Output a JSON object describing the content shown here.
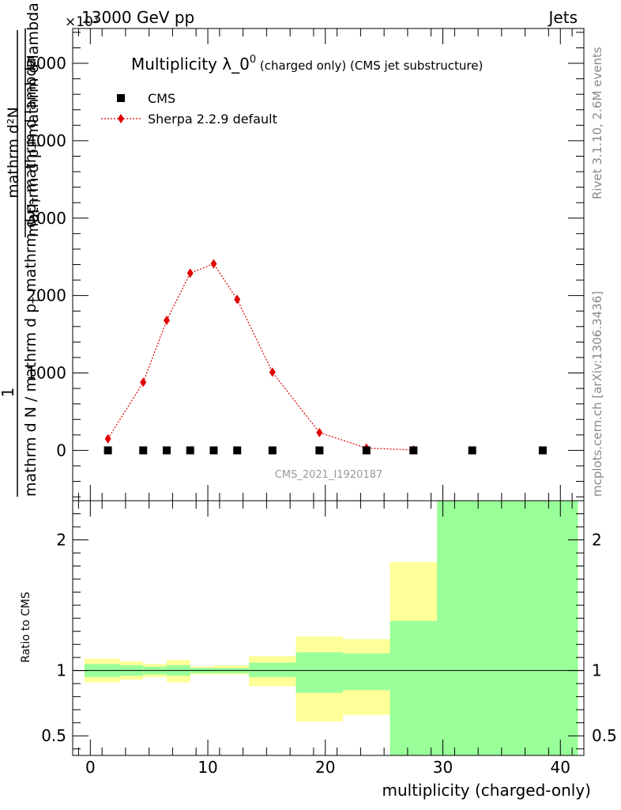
{
  "header": {
    "left": "13000 GeV pp",
    "right": "Jets",
    "exponent": "×10³"
  },
  "side": {
    "rivet": "Rivet 3.1.10,  2.6M events",
    "mcplots": "mcplots.cern.ch [arXiv:1306.3436]"
  },
  "chart_data": {
    "type": "scatter",
    "title_main": "Multiplicity λ_0",
    "title_sup": "0",
    "title_small": " (charged only) (CMS jet substructure)",
    "watermark": "CMS_2021_I1920187",
    "xlabel": "multiplicity (charged-only)",
    "ylabel_numerator_1": "mathrm d²N",
    "ylabel_numerator_2": "mathrm d p",
    "ylabel_numerator_sub": "T",
    "ylabel_numerator_3": " mathrm d lambda",
    "ylabel_denominator_1": "mathrm d N / mathrm d p",
    "ylabel_denominator_sub": "T",
    "ylabel_denominator_2": " mathrm d p",
    "ylabel_denominator_sub2": "T",
    "ylabel_denominator_3": " mathrm d lambda",
    "ylabel_one": "1",
    "ratio_ylabel": "Ratio to CMS",
    "xlim": [
      -1.5,
      42
    ],
    "ylim_main": [
      -6.5,
      54.5
    ],
    "ylim_ratio": [
      0.35,
      2.3
    ],
    "x_ticks": [
      0,
      10,
      20,
      30,
      40
    ],
    "x_tick_labels": [
      "0",
      "10",
      "20",
      "30",
      "40"
    ],
    "y_ticks_main": [
      0,
      10,
      20,
      30,
      40,
      50
    ],
    "y_tick_labels_main": [
      "0",
      "1000",
      "2000",
      "3000",
      "4000",
      "5000"
    ],
    "y_ticks_ratio": [
      0.5,
      1,
      2
    ],
    "y_tick_labels_ratio": [
      "0.5",
      "1",
      "2"
    ],
    "legend_position": "top-left",
    "series": [
      {
        "name": "CMS",
        "marker": "square",
        "color": "#000000",
        "x": [
          1.5,
          4.5,
          6.5,
          8.5,
          10.5,
          12.5,
          15.5,
          19.5,
          23.5,
          27.5,
          32.5,
          38.5
        ],
        "y": [
          0,
          0,
          0,
          0,
          0,
          0,
          0,
          0,
          0,
          0,
          0,
          0
        ]
      },
      {
        "name": "Sherpa 2.2.9 default",
        "marker": "diamond",
        "color": "#e00000",
        "x": [
          1.5,
          4.5,
          6.5,
          8.5,
          10.5,
          12.5,
          15.5,
          19.5,
          23.5,
          27.5
        ],
        "y": [
          1.5,
          8.8,
          16.8,
          22.9,
          24.1,
          19.5,
          10.1,
          2.3,
          0.3,
          0.05
        ]
      }
    ],
    "ratio_bands": [
      {
        "x0": -0.5,
        "x1": 2.5,
        "y_in": [
          0.95,
          1.05
        ],
        "y_out": [
          0.91,
          1.09
        ]
      },
      {
        "x0": 2.5,
        "x1": 4.5,
        "y_in": [
          0.96,
          1.04
        ],
        "y_out": [
          0.93,
          1.07
        ]
      },
      {
        "x0": 4.5,
        "x1": 6.5,
        "y_in": [
          0.97,
          1.03
        ],
        "y_out": [
          0.95,
          1.05
        ]
      },
      {
        "x0": 6.5,
        "x1": 8.5,
        "y_in": [
          0.96,
          1.04
        ],
        "y_out": [
          0.91,
          1.08
        ]
      },
      {
        "x0": 8.5,
        "x1": 10.5,
        "y_in": [
          0.98,
          1.02
        ],
        "y_out": [
          0.97,
          1.03
        ]
      },
      {
        "x0": 10.5,
        "x1": 13.5,
        "y_in": [
          0.98,
          1.02
        ],
        "y_out": [
          0.97,
          1.04
        ]
      },
      {
        "x0": 13.5,
        "x1": 17.5,
        "y_in": [
          0.95,
          1.06
        ],
        "y_out": [
          0.88,
          1.11
        ]
      },
      {
        "x0": 17.5,
        "x1": 21.5,
        "y_in": [
          0.83,
          1.14
        ],
        "y_out": [
          0.61,
          1.26
        ]
      },
      {
        "x0": 21.5,
        "x1": 25.5,
        "y_in": [
          0.85,
          1.13
        ],
        "y_out": [
          0.66,
          1.24
        ]
      },
      {
        "x0": 25.5,
        "x1": 29.5,
        "y_in": [
          0.35,
          1.38
        ],
        "y_out": [
          0.35,
          1.83
        ]
      },
      {
        "x0": 29.5,
        "x1": 41.5,
        "y_in": [
          0.35,
          2.3
        ],
        "y_out": [
          0.35,
          2.3
        ]
      }
    ],
    "colors": {
      "inner_band": "#99ff99",
      "outer_band": "#ffff99",
      "watermark": "#999999",
      "side_text": "#888888"
    }
  }
}
